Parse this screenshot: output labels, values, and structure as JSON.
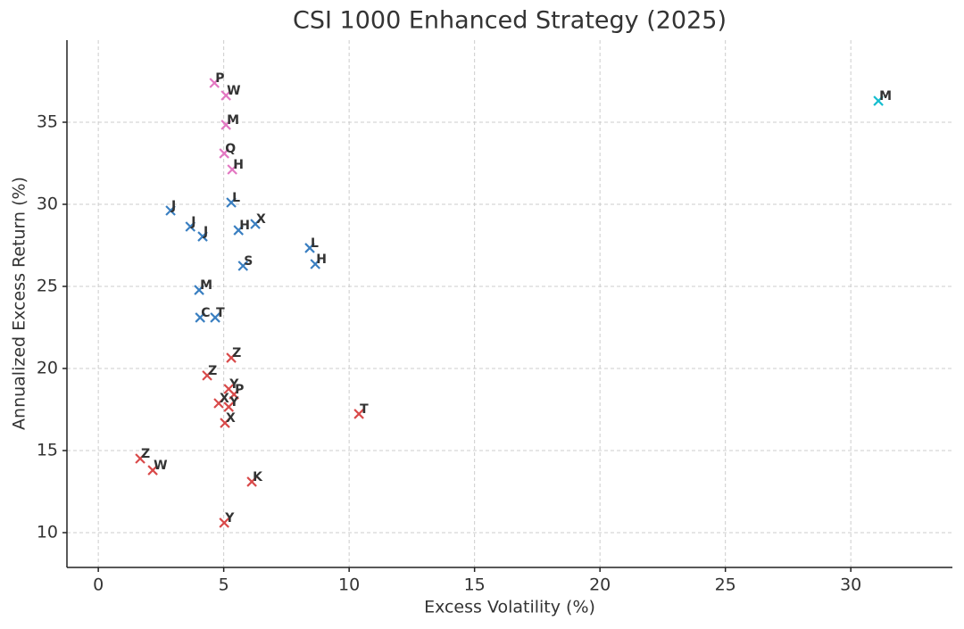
{
  "chart_data": {
    "type": "scatter",
    "title": "CSI 1000 Enhanced Strategy (2025)",
    "x_label": "Excess Volatility (%)",
    "y_label": "Annualized Excess Return (%)",
    "xlim": [
      -1.25,
      34.05
    ],
    "ylim": [
      7.88,
      40.0
    ],
    "xticks": [
      0,
      5,
      10,
      15,
      20,
      25,
      30
    ],
    "yticks": [
      10,
      15,
      20,
      25,
      30,
      35
    ],
    "grid": true,
    "series": [
      {
        "color": "#e377c2",
        "x": [
          4.63,
          5.09,
          5.09,
          5.02,
          5.34
        ],
        "values": [
          37.39,
          36.63,
          34.84,
          33.1,
          32.12
        ],
        "labels": [
          "P",
          "W",
          "M",
          "Q",
          "H"
        ]
      },
      {
        "color": "#17becf",
        "x": [
          31.1
        ],
        "values": [
          36.3
        ],
        "labels": [
          "M"
        ]
      },
      {
        "color": "#3a7fc1",
        "x": [
          2.88,
          5.3,
          3.67,
          4.16,
          5.59,
          6.26,
          8.43,
          8.65,
          5.77,
          4.02,
          4.06,
          4.66
        ],
        "values": [
          29.62,
          30.11,
          28.64,
          28.04,
          28.42,
          28.8,
          27.34,
          26.36,
          26.25,
          24.78,
          23.1,
          23.1
        ],
        "labels": [
          "J",
          "L",
          "J",
          "J",
          "H",
          "X",
          "L",
          "H",
          "S",
          "M",
          "C",
          "T"
        ]
      },
      {
        "color": "#d94a4a",
        "x": [
          5.3,
          4.34,
          5.2,
          5.41,
          4.8,
          5.2,
          5.05,
          10.39,
          1.67,
          2.17,
          6.12,
          5.02
        ],
        "values": [
          20.65,
          19.57,
          18.75,
          18.42,
          17.88,
          17.66,
          16.68,
          17.23,
          14.51,
          13.8,
          13.1,
          10.6
        ],
        "labels": [
          "Z",
          "Z",
          "Y",
          "P",
          "X",
          "Y",
          "X",
          "T",
          "Z",
          "W",
          "K",
          "Y"
        ]
      }
    ]
  }
}
